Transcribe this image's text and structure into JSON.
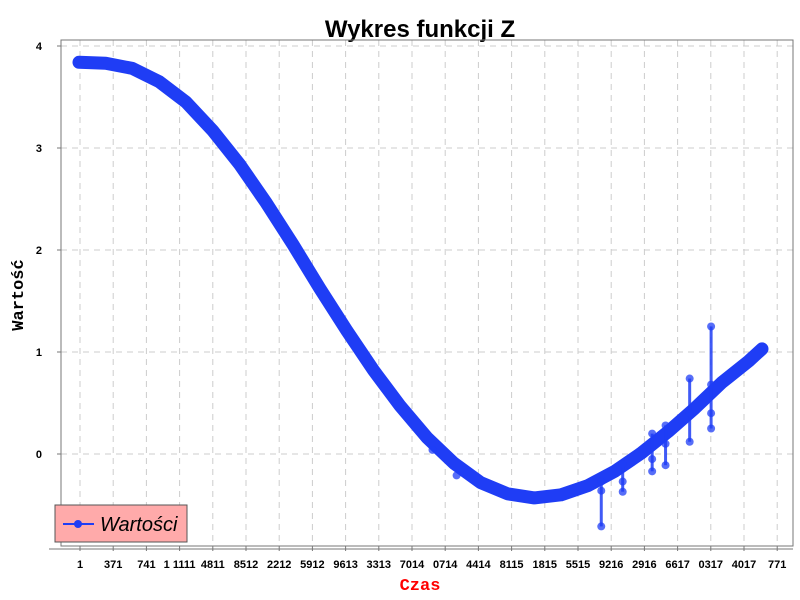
{
  "chart_data": {
    "type": "line",
    "title": "Wykres funkcji Z",
    "xlabel": "Czas",
    "ylabel": "Wartość",
    "ylim": [
      -0.9,
      4.05
    ],
    "yticks": [
      0,
      1,
      2,
      3,
      4
    ],
    "x_tick_labels": [
      "1",
      "371",
      "741",
      "1 1111",
      "4811",
      "8512",
      "2212",
      "5912",
      "9613",
      "3313",
      "7014",
      "0714",
      "4414",
      "8115",
      "1815",
      "5515",
      "9216",
      "2916",
      "6617",
      "0317",
      "4017",
      "771"
    ],
    "grid": true,
    "legend": {
      "position": "bottom-left",
      "entries": [
        "Wartości"
      ]
    },
    "colors": {
      "series": "#1f3df5",
      "legend_bg": "#ffaaaa",
      "xlabel": "#ff0000",
      "grid": "#cccccc"
    },
    "series": [
      {
        "name": "Wartości",
        "curve_points": [
          [
            1,
            3.84
          ],
          [
            200,
            3.83
          ],
          [
            400,
            3.78
          ],
          [
            600,
            3.65
          ],
          [
            800,
            3.45
          ],
          [
            1000,
            3.17
          ],
          [
            1200,
            2.84
          ],
          [
            1400,
            2.46
          ],
          [
            1600,
            2.05
          ],
          [
            1800,
            1.62
          ],
          [
            2000,
            1.21
          ],
          [
            2200,
            0.82
          ],
          [
            2400,
            0.47
          ],
          [
            2600,
            0.16
          ],
          [
            2800,
            -0.09
          ],
          [
            3000,
            -0.28
          ],
          [
            3200,
            -0.39
          ],
          [
            3400,
            -0.43
          ],
          [
            3600,
            -0.4
          ],
          [
            3800,
            -0.31
          ],
          [
            4000,
            -0.17
          ],
          [
            4200,
            0.01
          ],
          [
            4400,
            0.22
          ],
          [
            4600,
            0.45
          ],
          [
            4800,
            0.7
          ],
          [
            5000,
            0.91
          ],
          [
            5100,
            1.03
          ]
        ],
        "outlier_points": [
          [
            2640,
            0.04
          ],
          [
            2820,
            -0.21
          ],
          [
            3900,
            -0.71
          ],
          [
            3900,
            -0.27
          ],
          [
            3900,
            -0.36
          ],
          [
            4060,
            -0.37
          ],
          [
            4060,
            -0.1
          ],
          [
            4060,
            -0.27
          ],
          [
            4280,
            0.2
          ],
          [
            4280,
            -0.17
          ],
          [
            4280,
            -0.05
          ],
          [
            4380,
            0.28
          ],
          [
            4380,
            -0.11
          ],
          [
            4380,
            0.1
          ],
          [
            4560,
            0.74
          ],
          [
            4560,
            0.12
          ],
          [
            4560,
            0.4
          ],
          [
            4720,
            1.25
          ],
          [
            4720,
            0.25
          ],
          [
            4720,
            0.68
          ],
          [
            4720,
            0.4
          ]
        ]
      }
    ]
  }
}
